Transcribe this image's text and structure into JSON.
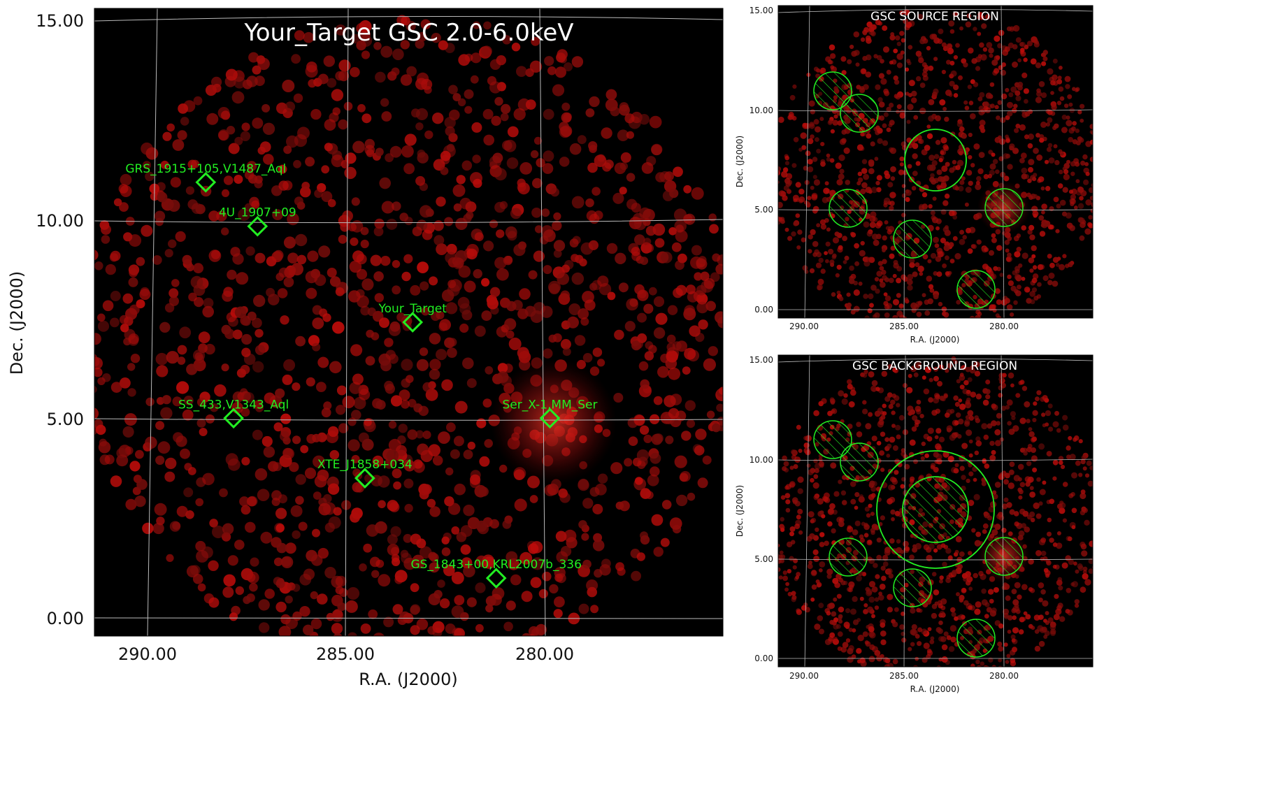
{
  "main_panel": {
    "title": "Your_Target GSC 2.0-6.0keV",
    "xlabel": "R.A. (J2000)",
    "ylabel": "Dec. (J2000)",
    "x_ticks": [
      "290.00",
      "285.00",
      "280.00"
    ],
    "y_ticks": [
      "15.00",
      "10.00",
      "5.00",
      "0.00"
    ],
    "ra_range": [
      291.4,
      275.6
    ],
    "dec_range": [
      -0.45,
      15.25
    ],
    "sources": [
      {
        "name": "GRS_1915+105,V1487_Aql",
        "ra": 288.6,
        "dec": 10.9
      },
      {
        "name": "4U_1907+09",
        "ra": 287.3,
        "dec": 9.8
      },
      {
        "name": "Your_Target",
        "ra": 283.4,
        "dec": 7.4
      },
      {
        "name": "SS_433,V1343_Aql",
        "ra": 287.9,
        "dec": 5.0
      },
      {
        "name": "Ser_X-1,MM_Ser",
        "ra": 279.95,
        "dec": 5.0
      },
      {
        "name": "XTE_J1858+034",
        "ra": 284.6,
        "dec": 3.5
      },
      {
        "name": "GS_1843+00,KRL2007b_336",
        "ra": 281.3,
        "dec": 1.0
      }
    ],
    "image_colors": {
      "background": "#000000",
      "emission": "#c01010",
      "marker": "#22ee22",
      "grid": "#bbbbbb"
    }
  },
  "source_panel": {
    "title": "GSC SOURCE REGION",
    "xlabel": "R.A. (J2000)",
    "ylabel": "Dec. (J2000)",
    "x_ticks": [
      "290.00",
      "285.00",
      "280.00"
    ],
    "y_ticks": [
      "15.00",
      "10.00",
      "5.00",
      "0.00"
    ]
  },
  "background_panel": {
    "title": "GSC BACKGROUND REGION",
    "xlabel": "R.A. (J2000)",
    "ylabel": "Dec. (J2000)",
    "x_ticks": [
      "290.00",
      "285.00",
      "280.00"
    ],
    "y_ticks": [
      "15.00",
      "10.00",
      "5.00",
      "0.00"
    ]
  }
}
